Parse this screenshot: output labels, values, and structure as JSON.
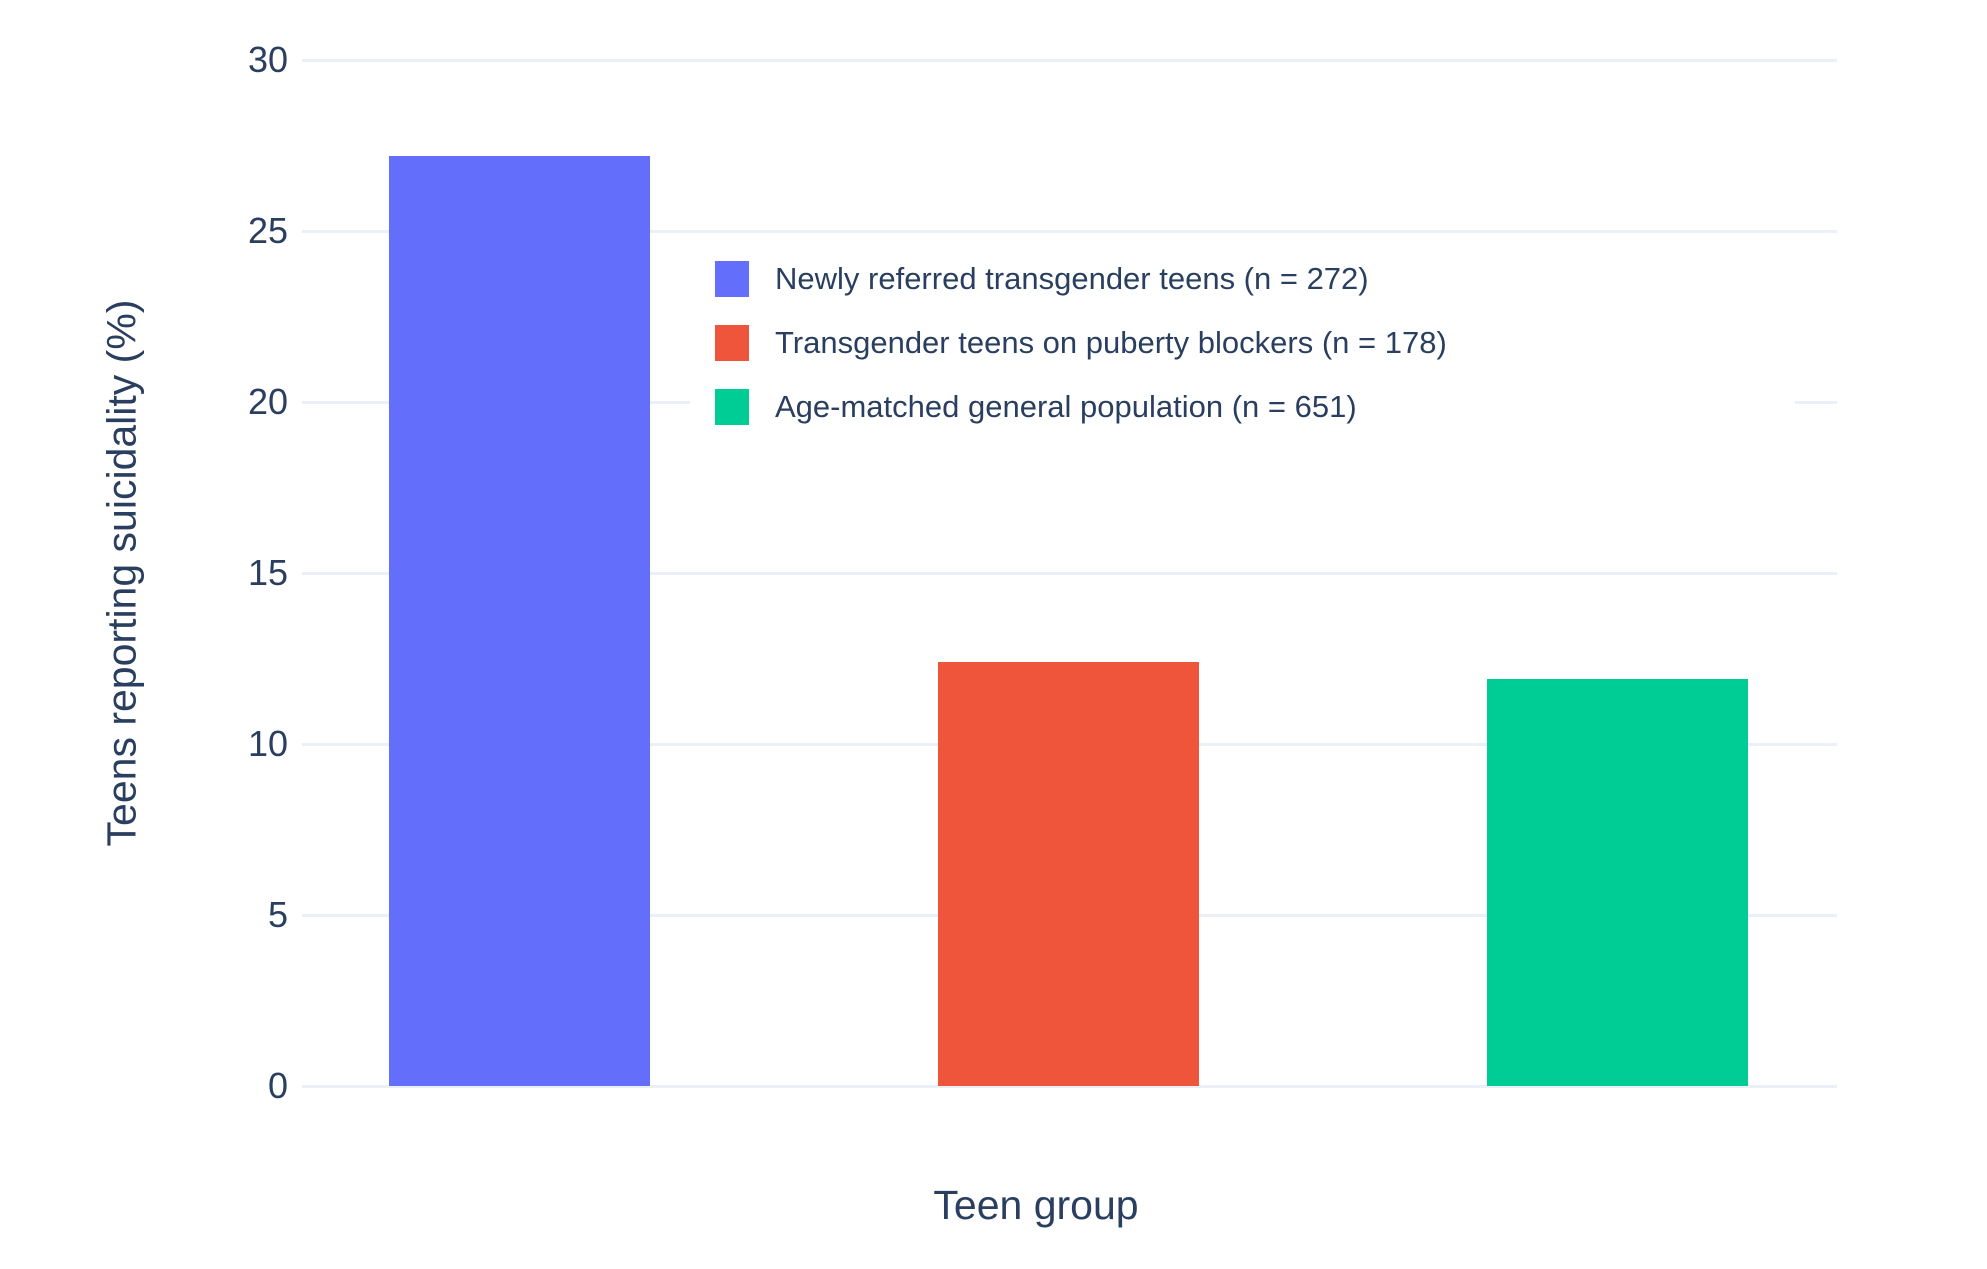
{
  "chart_data": {
    "type": "bar",
    "title": "",
    "xlabel": "Teen group",
    "ylabel": "Teens reporting suicidality (%)",
    "ylim": [
      0,
      30
    ],
    "yticks": [
      0,
      5,
      10,
      15,
      20,
      25,
      30
    ],
    "grid": true,
    "legend_position": "inside top, spanning plot",
    "background": "#ffffff",
    "grid_color": "#EBF0F8",
    "text_color": "#2a3f5f",
    "categories": [
      "Newly referred transgender teens (n = 272)",
      "Transgender teens on puberty blockers (n = 178)",
      "Age-matched general population (n = 651)"
    ],
    "series": [
      {
        "name": "Newly referred transgender teens (n = 272)",
        "value": 27.2,
        "color": "#636EFA"
      },
      {
        "name": "Transgender teens on puberty blockers (n = 178)",
        "value": 12.4,
        "color": "#EF553B"
      },
      {
        "name": "Age-matched general population (n = 651)",
        "value": 11.9,
        "color": "#00CC96"
      }
    ]
  }
}
